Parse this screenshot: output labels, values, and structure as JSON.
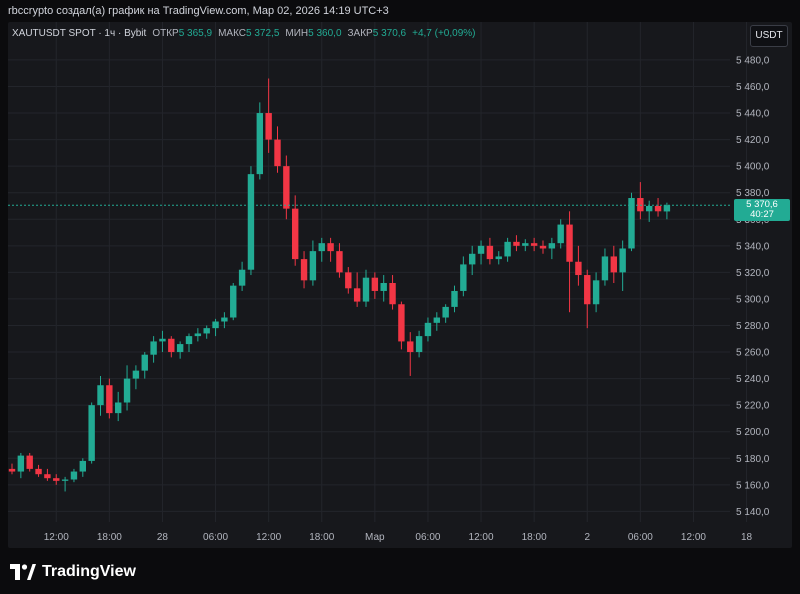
{
  "header": {
    "creator_line": "rbccrypto создал(а) график на TradingView.com, Мар 02, 2026 14:19 UTC+3"
  },
  "legend": {
    "ticker": "XAUTUSDT SPOT · 1ч · Bybit",
    "open_label": "ОТКР",
    "open_value": "5 365,9",
    "high_label": "МАКС",
    "high_value": "5 372,5",
    "low_label": "МИН",
    "low_value": "5 360,0",
    "close_label": "ЗАКР",
    "close_value": "5 370,6",
    "change": "+4,7 (+0,09%)"
  },
  "currency_button": "USDT",
  "last_price": {
    "value": "5 370,6",
    "countdown": "40:27"
  },
  "footer": {
    "brand": "TradingView"
  },
  "colors": {
    "up": "#22ab94",
    "down": "#f23645",
    "background": "#17181c",
    "grid": "#23252b",
    "axis_text": "#b2b5be"
  },
  "chart_data": {
    "type": "candlestick",
    "title": "XAUTUSDT SPOT · 1ч · Bybit",
    "y_ticks": [
      "5 480,0",
      "5 460,0",
      "5 440,0",
      "5 420,0",
      "5 400,0",
      "5 380,0",
      "5 360,0",
      "5 340,0",
      "5 320,0",
      "5 300,0",
      "5 280,0",
      "5 260,0",
      "5 240,0",
      "5 220,0",
      "5 200,0",
      "5 180,0",
      "5 160,0",
      "5 140,0"
    ],
    "y_tick_values": [
      5480,
      5460,
      5440,
      5420,
      5400,
      5380,
      5360,
      5340,
      5320,
      5300,
      5280,
      5260,
      5240,
      5220,
      5200,
      5180,
      5160,
      5140
    ],
    "ylim": [
      5132,
      5492
    ],
    "x_ticks": [
      {
        "label": "12:00",
        "bar": 5
      },
      {
        "label": "18:00",
        "bar": 11
      },
      {
        "label": "28",
        "bar": 17
      },
      {
        "label": "06:00",
        "bar": 23
      },
      {
        "label": "12:00",
        "bar": 29
      },
      {
        "label": "18:00",
        "bar": 35
      },
      {
        "label": "Мар",
        "bar": 41
      },
      {
        "label": "06:00",
        "bar": 47
      },
      {
        "label": "12:00",
        "bar": 53
      },
      {
        "label": "18:00",
        "bar": 59
      },
      {
        "label": "2",
        "bar": 65
      },
      {
        "label": "06:00",
        "bar": 71
      },
      {
        "label": "12:00",
        "bar": 77
      },
      {
        "label": "18",
        "bar": 83
      }
    ],
    "last_price": 5370.6,
    "ohlc": [
      [
        5172,
        5176,
        5168,
        5170
      ],
      [
        5170,
        5184,
        5165,
        5182
      ],
      [
        5182,
        5184,
        5170,
        5172
      ],
      [
        5172,
        5175,
        5166,
        5168
      ],
      [
        5168,
        5172,
        5163,
        5165
      ],
      [
        5165,
        5168,
        5160,
        5163
      ],
      [
        5163,
        5166,
        5155,
        5164
      ],
      [
        5164,
        5172,
        5162,
        5170
      ],
      [
        5170,
        5180,
        5166,
        5178
      ],
      [
        5178,
        5222,
        5176,
        5220
      ],
      [
        5220,
        5242,
        5212,
        5235
      ],
      [
        5235,
        5240,
        5210,
        5214
      ],
      [
        5214,
        5230,
        5208,
        5222
      ],
      [
        5222,
        5250,
        5216,
        5240
      ],
      [
        5240,
        5250,
        5232,
        5246
      ],
      [
        5246,
        5260,
        5240,
        5258
      ],
      [
        5258,
        5272,
        5252,
        5268
      ],
      [
        5268,
        5276,
        5260,
        5270
      ],
      [
        5270,
        5272,
        5256,
        5260
      ],
      [
        5260,
        5268,
        5255,
        5266
      ],
      [
        5266,
        5274,
        5260,
        5272
      ],
      [
        5272,
        5278,
        5268,
        5274
      ],
      [
        5274,
        5280,
        5270,
        5278
      ],
      [
        5278,
        5285,
        5272,
        5283
      ],
      [
        5283,
        5290,
        5278,
        5286
      ],
      [
        5286,
        5312,
        5284,
        5310
      ],
      [
        5310,
        5328,
        5306,
        5322
      ],
      [
        5322,
        5400,
        5318,
        5394
      ],
      [
        5394,
        5448,
        5390,
        5440
      ],
      [
        5440,
        5466,
        5410,
        5420
      ],
      [
        5420,
        5430,
        5395,
        5400
      ],
      [
        5400,
        5408,
        5360,
        5368
      ],
      [
        5368,
        5378,
        5325,
        5330
      ],
      [
        5330,
        5336,
        5308,
        5314
      ],
      [
        5314,
        5344,
        5310,
        5336
      ],
      [
        5336,
        5346,
        5328,
        5342
      ],
      [
        5342,
        5346,
        5328,
        5336
      ],
      [
        5336,
        5342,
        5316,
        5320
      ],
      [
        5320,
        5324,
        5304,
        5308
      ],
      [
        5308,
        5320,
        5294,
        5298
      ],
      [
        5298,
        5322,
        5294,
        5316
      ],
      [
        5316,
        5320,
        5300,
        5306
      ],
      [
        5306,
        5318,
        5298,
        5312
      ],
      [
        5312,
        5318,
        5292,
        5296
      ],
      [
        5296,
        5298,
        5262,
        5268
      ],
      [
        5268,
        5275,
        5242,
        5260
      ],
      [
        5260,
        5276,
        5256,
        5272
      ],
      [
        5272,
        5286,
        5268,
        5282
      ],
      [
        5282,
        5290,
        5276,
        5286
      ],
      [
        5286,
        5296,
        5282,
        5294
      ],
      [
        5294,
        5310,
        5290,
        5306
      ],
      [
        5306,
        5332,
        5302,
        5326
      ],
      [
        5326,
        5340,
        5318,
        5334
      ],
      [
        5334,
        5344,
        5326,
        5340
      ],
      [
        5340,
        5346,
        5326,
        5330
      ],
      [
        5330,
        5336,
        5326,
        5332
      ],
      [
        5332,
        5346,
        5328,
        5343
      ],
      [
        5343,
        5348,
        5336,
        5340
      ],
      [
        5340,
        5345,
        5336,
        5342
      ],
      [
        5342,
        5346,
        5336,
        5340
      ],
      [
        5340,
        5344,
        5334,
        5338
      ],
      [
        5338,
        5346,
        5330,
        5342
      ],
      [
        5342,
        5360,
        5338,
        5356
      ],
      [
        5356,
        5366,
        5290,
        5328
      ],
      [
        5328,
        5340,
        5310,
        5318
      ],
      [
        5318,
        5322,
        5278,
        5296
      ],
      [
        5296,
        5320,
        5290,
        5314
      ],
      [
        5314,
        5338,
        5310,
        5332
      ],
      [
        5332,
        5340,
        5312,
        5320
      ],
      [
        5320,
        5344,
        5306,
        5338
      ],
      [
        5338,
        5380,
        5336,
        5376
      ],
      [
        5376,
        5388,
        5360,
        5366
      ],
      [
        5366,
        5374,
        5358,
        5370
      ],
      [
        5370,
        5376,
        5362,
        5366
      ],
      [
        5365.9,
        5372.5,
        5360,
        5370.6
      ]
    ]
  }
}
